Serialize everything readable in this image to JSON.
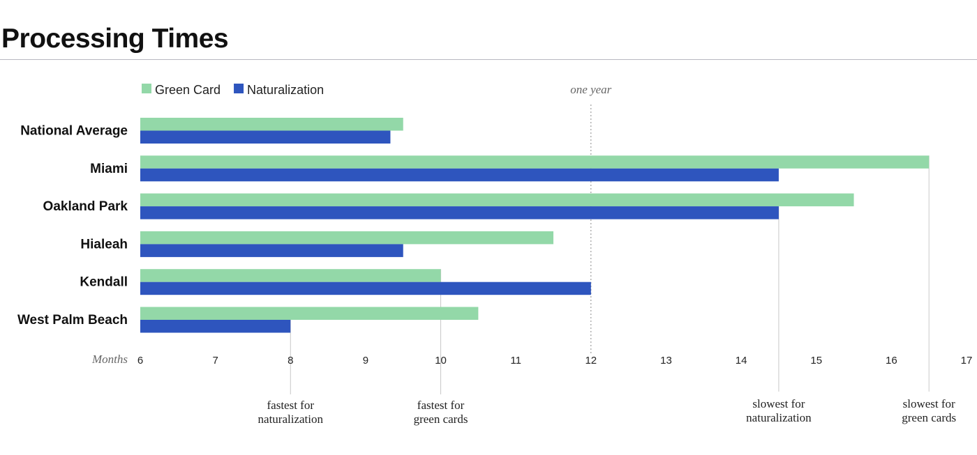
{
  "page": {
    "title": "Processing Times"
  },
  "chart_data": {
    "type": "bar",
    "orientation": "horizontal",
    "title": "Processing Times",
    "xlabel": "Months",
    "xlim": [
      6,
      17
    ],
    "xticks": [
      6,
      7,
      8,
      9,
      10,
      11,
      12,
      13,
      14,
      15,
      16,
      17
    ],
    "categories": [
      "National Average",
      "Miami",
      "Oakland Park",
      "Hialeah",
      "Kendall",
      "West Palm Beach"
    ],
    "series": [
      {
        "name": "Green Card",
        "color": "#93d8a8",
        "values": [
          9.5,
          16.5,
          15.5,
          11.5,
          10,
          10.5
        ]
      },
      {
        "name": "Naturalization",
        "color": "#2e55be",
        "values": [
          9.33,
          14.5,
          14.5,
          9.5,
          12,
          8
        ]
      }
    ],
    "legend_position": "top-left",
    "reference_line": {
      "x": 12,
      "label": "one year"
    },
    "annotations": [
      {
        "x": 8,
        "lines": [
          "fastest for",
          "naturalization"
        ]
      },
      {
        "x": 10,
        "lines": [
          "fastest for",
          "green cards"
        ]
      },
      {
        "x": 14.5,
        "lines": [
          "slowest for",
          "naturalization"
        ]
      },
      {
        "x": 16.5,
        "lines": [
          "slowest for",
          "green cards"
        ]
      }
    ]
  }
}
